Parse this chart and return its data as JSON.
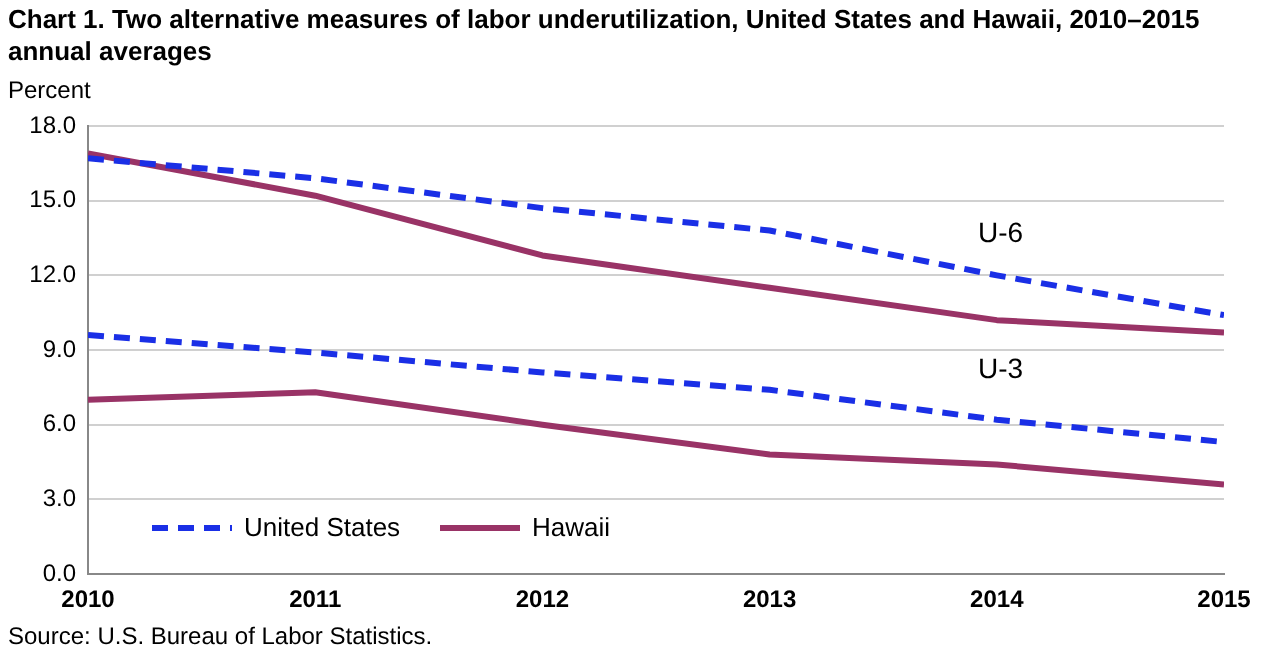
{
  "chart_data": {
    "type": "line",
    "title": "Chart 1. Two alternative measures of labor underutilization, United States and Hawaii, 2010–2015  annual averages",
    "ylabel": "Percent",
    "x": [
      2010,
      2011,
      2012,
      2013,
      2014,
      2015
    ],
    "xlim": [
      2010,
      2015
    ],
    "xticks": [
      2010,
      2011,
      2012,
      2013,
      2014,
      2015
    ],
    "ylim": [
      0,
      18
    ],
    "yticks": [
      {
        "value": 0,
        "label": "0.0"
      },
      {
        "value": 3,
        "label": "3.0"
      },
      {
        "value": 6,
        "label": "6.0"
      },
      {
        "value": 9,
        "label": "9.0"
      },
      {
        "value": 12,
        "label": "12.0"
      },
      {
        "value": 15,
        "label": "15.0"
      },
      {
        "value": 18,
        "label": "18.0"
      }
    ],
    "grid": "y",
    "legend": "bottom left",
    "marker": "none",
    "series": [
      {
        "name": "United States",
        "color": "#1a2fe6",
        "line_style": "dashed",
        "values": [
          16.7,
          15.9,
          14.7,
          13.8,
          12.0,
          10.4
        ]
      },
      {
        "name": "Hawaii",
        "color": "#993366",
        "line_style": "solid",
        "values": [
          16.9,
          15.2,
          12.8,
          11.5,
          10.2,
          9.7
        ]
      },
      {
        "color": "#1a2fe6",
        "line_style": "dashed",
        "values": [
          9.6,
          8.9,
          8.1,
          7.4,
          6.2,
          5.3
        ]
      },
      {
        "color": "#993366",
        "line_style": "solid",
        "values": [
          7.0,
          7.3,
          6.0,
          4.8,
          4.4,
          3.6
        ]
      }
    ],
    "annotations": [
      "U-6",
      "U-3",
      "Source: U.S. Bureau of Labor Statistics."
    ]
  }
}
